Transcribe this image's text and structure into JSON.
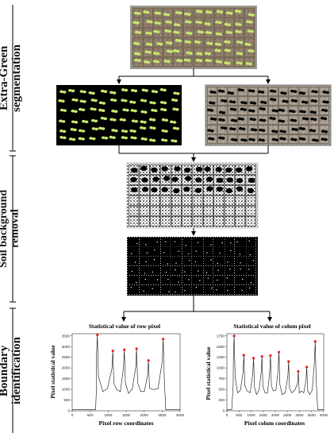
{
  "stages": {
    "extra_green": [
      "Extra-Green",
      "segmentation"
    ],
    "soil_removal": [
      "Soil background",
      "removal"
    ],
    "boundary": [
      "Boundary",
      "identification"
    ]
  },
  "colors": {
    "tray_soil": "#8c7b68",
    "seedling_green": "#c6e86e",
    "binary_black": "#000000",
    "peak_marker": "#e8201c",
    "curve": "#111111"
  },
  "chart_data": [
    {
      "type": "line",
      "title": "Statistical value of row pixel",
      "xlabel": "Pixel row coordinates",
      "ylabel": "Pixel statistical value",
      "xlim": [
        0,
        3000
      ],
      "ylim": [
        0,
        3600
      ],
      "xticks": [
        0,
        500,
        1000,
        1500,
        2000,
        2500,
        3000
      ],
      "yticks": [
        0,
        500,
        1000,
        1500,
        2000,
        2500,
        3000,
        3500
      ],
      "peaks": [
        {
          "x": 700,
          "y": 3550
        },
        {
          "x": 1130,
          "y": 2800
        },
        {
          "x": 1450,
          "y": 2850
        },
        {
          "x": 1790,
          "y": 2900
        },
        {
          "x": 2120,
          "y": 2350
        },
        {
          "x": 2530,
          "y": 3350
        }
      ],
      "baseline": 50,
      "data_start": 650,
      "data_end": 2600,
      "valley": 900
    },
    {
      "type": "line",
      "title": "Statistical value of colum pixel",
      "xlabel": "Pixel colum coordinates",
      "ylabel": "Pixel statistical value",
      "xlim": [
        0,
        4000
      ],
      "ylim": [
        0,
        1800
      ],
      "xticks": [
        0,
        500,
        1000,
        1500,
        2000,
        2500,
        3000,
        3500,
        4000
      ],
      "yticks": [
        0,
        250,
        500,
        750,
        1000,
        1250,
        1500,
        1750
      ],
      "peaks": [
        {
          "x": 300,
          "y": 1750
        },
        {
          "x": 700,
          "y": 1300
        },
        {
          "x": 1100,
          "y": 1230
        },
        {
          "x": 1450,
          "y": 1270
        },
        {
          "x": 1800,
          "y": 1290
        },
        {
          "x": 2150,
          "y": 1370
        },
        {
          "x": 2550,
          "y": 1150
        },
        {
          "x": 2950,
          "y": 920
        },
        {
          "x": 3300,
          "y": 1020
        },
        {
          "x": 3650,
          "y": 1620
        }
      ],
      "baseline": 30,
      "data_start": 200,
      "data_end": 3750,
      "valley": 420
    }
  ]
}
